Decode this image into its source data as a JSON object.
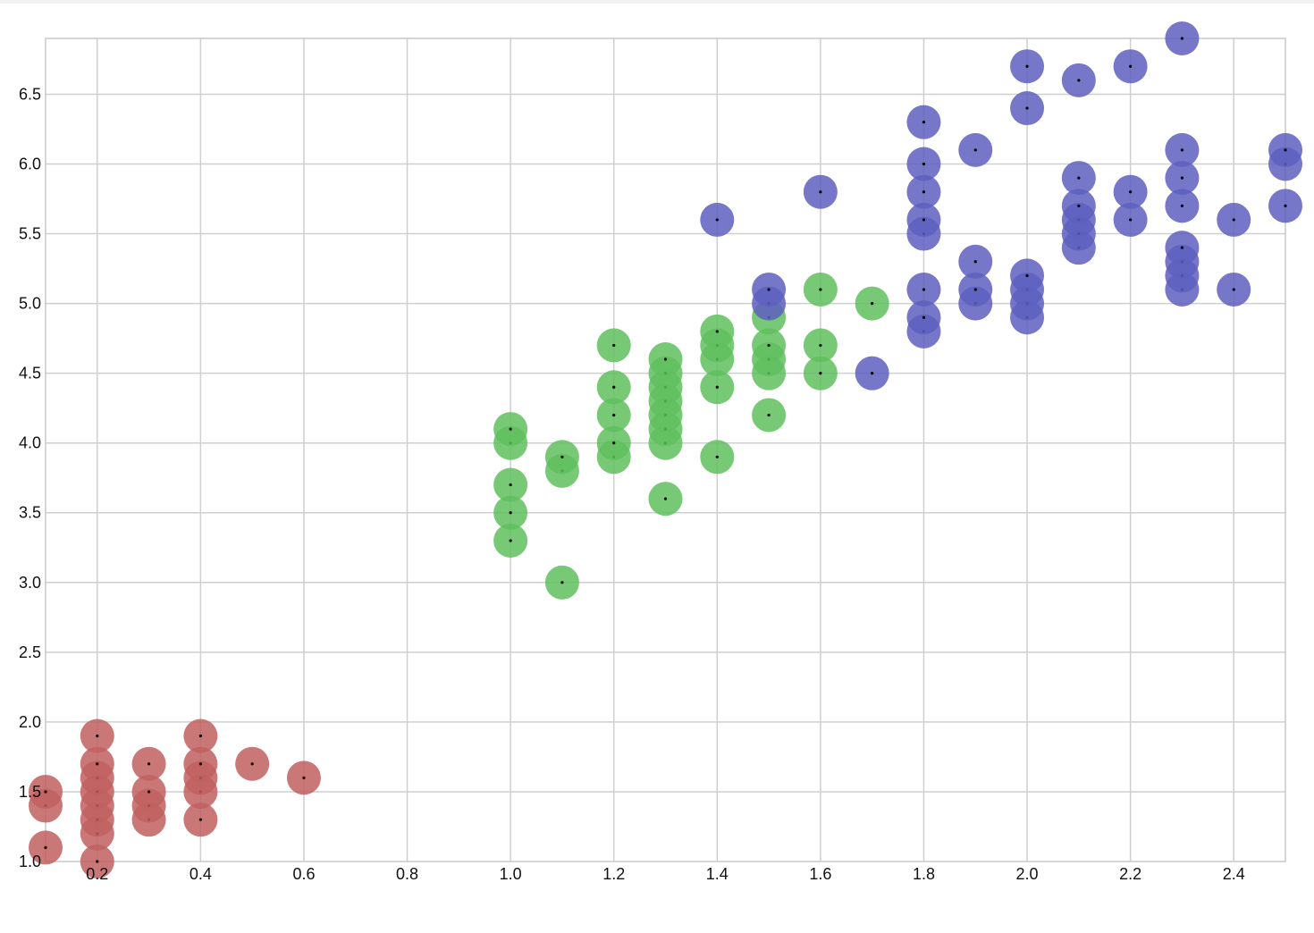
{
  "chart_data": {
    "type": "scatter",
    "title": "",
    "xlabel": "",
    "ylabel": "",
    "xlim": [
      0.1,
      2.5
    ],
    "ylim": [
      1.0,
      6.9
    ],
    "grid": true,
    "x_ticks": [
      "0.2",
      "0.4",
      "0.6",
      "0.8",
      "1.0",
      "1.2",
      "1.4",
      "1.6",
      "1.8",
      "2.0",
      "2.2",
      "2.4"
    ],
    "y_ticks": [
      "1.0",
      "1.5",
      "2.0",
      "2.5",
      "3.0",
      "3.5",
      "4.0",
      "4.5",
      "5.0",
      "5.5",
      "6.0",
      "6.5"
    ],
    "series": [
      {
        "color": "#c0605f",
        "points": [
          [
            0.1,
            1.1
          ],
          [
            0.1,
            1.4
          ],
          [
            0.1,
            1.5
          ],
          [
            0.2,
            1.0
          ],
          [
            0.2,
            1.2
          ],
          [
            0.2,
            1.3
          ],
          [
            0.2,
            1.4
          ],
          [
            0.2,
            1.5
          ],
          [
            0.2,
            1.6
          ],
          [
            0.2,
            1.7
          ],
          [
            0.2,
            1.9
          ],
          [
            0.3,
            1.3
          ],
          [
            0.3,
            1.4
          ],
          [
            0.3,
            1.5
          ],
          [
            0.3,
            1.7
          ],
          [
            0.4,
            1.3
          ],
          [
            0.4,
            1.5
          ],
          [
            0.4,
            1.6
          ],
          [
            0.4,
            1.7
          ],
          [
            0.4,
            1.9
          ],
          [
            0.5,
            1.7
          ],
          [
            0.6,
            1.6
          ]
        ]
      },
      {
        "color": "#5fbf5e",
        "points": [
          [
            1.0,
            3.3
          ],
          [
            1.0,
            3.5
          ],
          [
            1.0,
            3.7
          ],
          [
            1.0,
            4.0
          ],
          [
            1.0,
            4.1
          ],
          [
            1.1,
            3.0
          ],
          [
            1.1,
            3.8
          ],
          [
            1.1,
            3.9
          ],
          [
            1.2,
            3.9
          ],
          [
            1.2,
            4.0
          ],
          [
            1.2,
            4.2
          ],
          [
            1.2,
            4.4
          ],
          [
            1.2,
            4.7
          ],
          [
            1.3,
            3.6
          ],
          [
            1.3,
            4.0
          ],
          [
            1.3,
            4.1
          ],
          [
            1.3,
            4.2
          ],
          [
            1.3,
            4.3
          ],
          [
            1.3,
            4.4
          ],
          [
            1.3,
            4.5
          ],
          [
            1.3,
            4.6
          ],
          [
            1.4,
            3.9
          ],
          [
            1.4,
            4.4
          ],
          [
            1.4,
            4.6
          ],
          [
            1.4,
            4.7
          ],
          [
            1.4,
            4.8
          ],
          [
            1.5,
            4.2
          ],
          [
            1.5,
            4.5
          ],
          [
            1.5,
            4.6
          ],
          [
            1.5,
            4.7
          ],
          [
            1.5,
            4.9
          ],
          [
            1.6,
            4.5
          ],
          [
            1.6,
            4.7
          ],
          [
            1.6,
            5.1
          ],
          [
            1.7,
            5.0
          ]
        ]
      },
      {
        "color": "#5e5fbf",
        "points": [
          [
            1.4,
            5.6
          ],
          [
            1.5,
            5.0
          ],
          [
            1.5,
            5.1
          ],
          [
            1.6,
            5.8
          ],
          [
            1.7,
            4.5
          ],
          [
            1.8,
            4.8
          ],
          [
            1.8,
            4.9
          ],
          [
            1.8,
            5.1
          ],
          [
            1.8,
            5.5
          ],
          [
            1.8,
            5.6
          ],
          [
            1.8,
            5.8
          ],
          [
            1.8,
            6.0
          ],
          [
            1.8,
            6.3
          ],
          [
            1.9,
            5.0
          ],
          [
            1.9,
            5.1
          ],
          [
            1.9,
            5.3
          ],
          [
            1.9,
            6.1
          ],
          [
            2.0,
            4.9
          ],
          [
            2.0,
            5.0
          ],
          [
            2.0,
            5.1
          ],
          [
            2.0,
            5.2
          ],
          [
            2.0,
            6.4
          ],
          [
            2.0,
            6.7
          ],
          [
            2.1,
            5.4
          ],
          [
            2.1,
            5.5
          ],
          [
            2.1,
            5.6
          ],
          [
            2.1,
            5.7
          ],
          [
            2.1,
            5.9
          ],
          [
            2.1,
            6.6
          ],
          [
            2.2,
            5.6
          ],
          [
            2.2,
            5.8
          ],
          [
            2.2,
            6.7
          ],
          [
            2.3,
            5.1
          ],
          [
            2.3,
            5.2
          ],
          [
            2.3,
            5.3
          ],
          [
            2.3,
            5.4
          ],
          [
            2.3,
            5.7
          ],
          [
            2.3,
            5.9
          ],
          [
            2.3,
            6.1
          ],
          [
            2.3,
            6.9
          ],
          [
            2.4,
            5.1
          ],
          [
            2.4,
            5.6
          ],
          [
            2.5,
            5.7
          ],
          [
            2.5,
            6.0
          ],
          [
            2.5,
            6.1
          ]
        ]
      }
    ]
  }
}
